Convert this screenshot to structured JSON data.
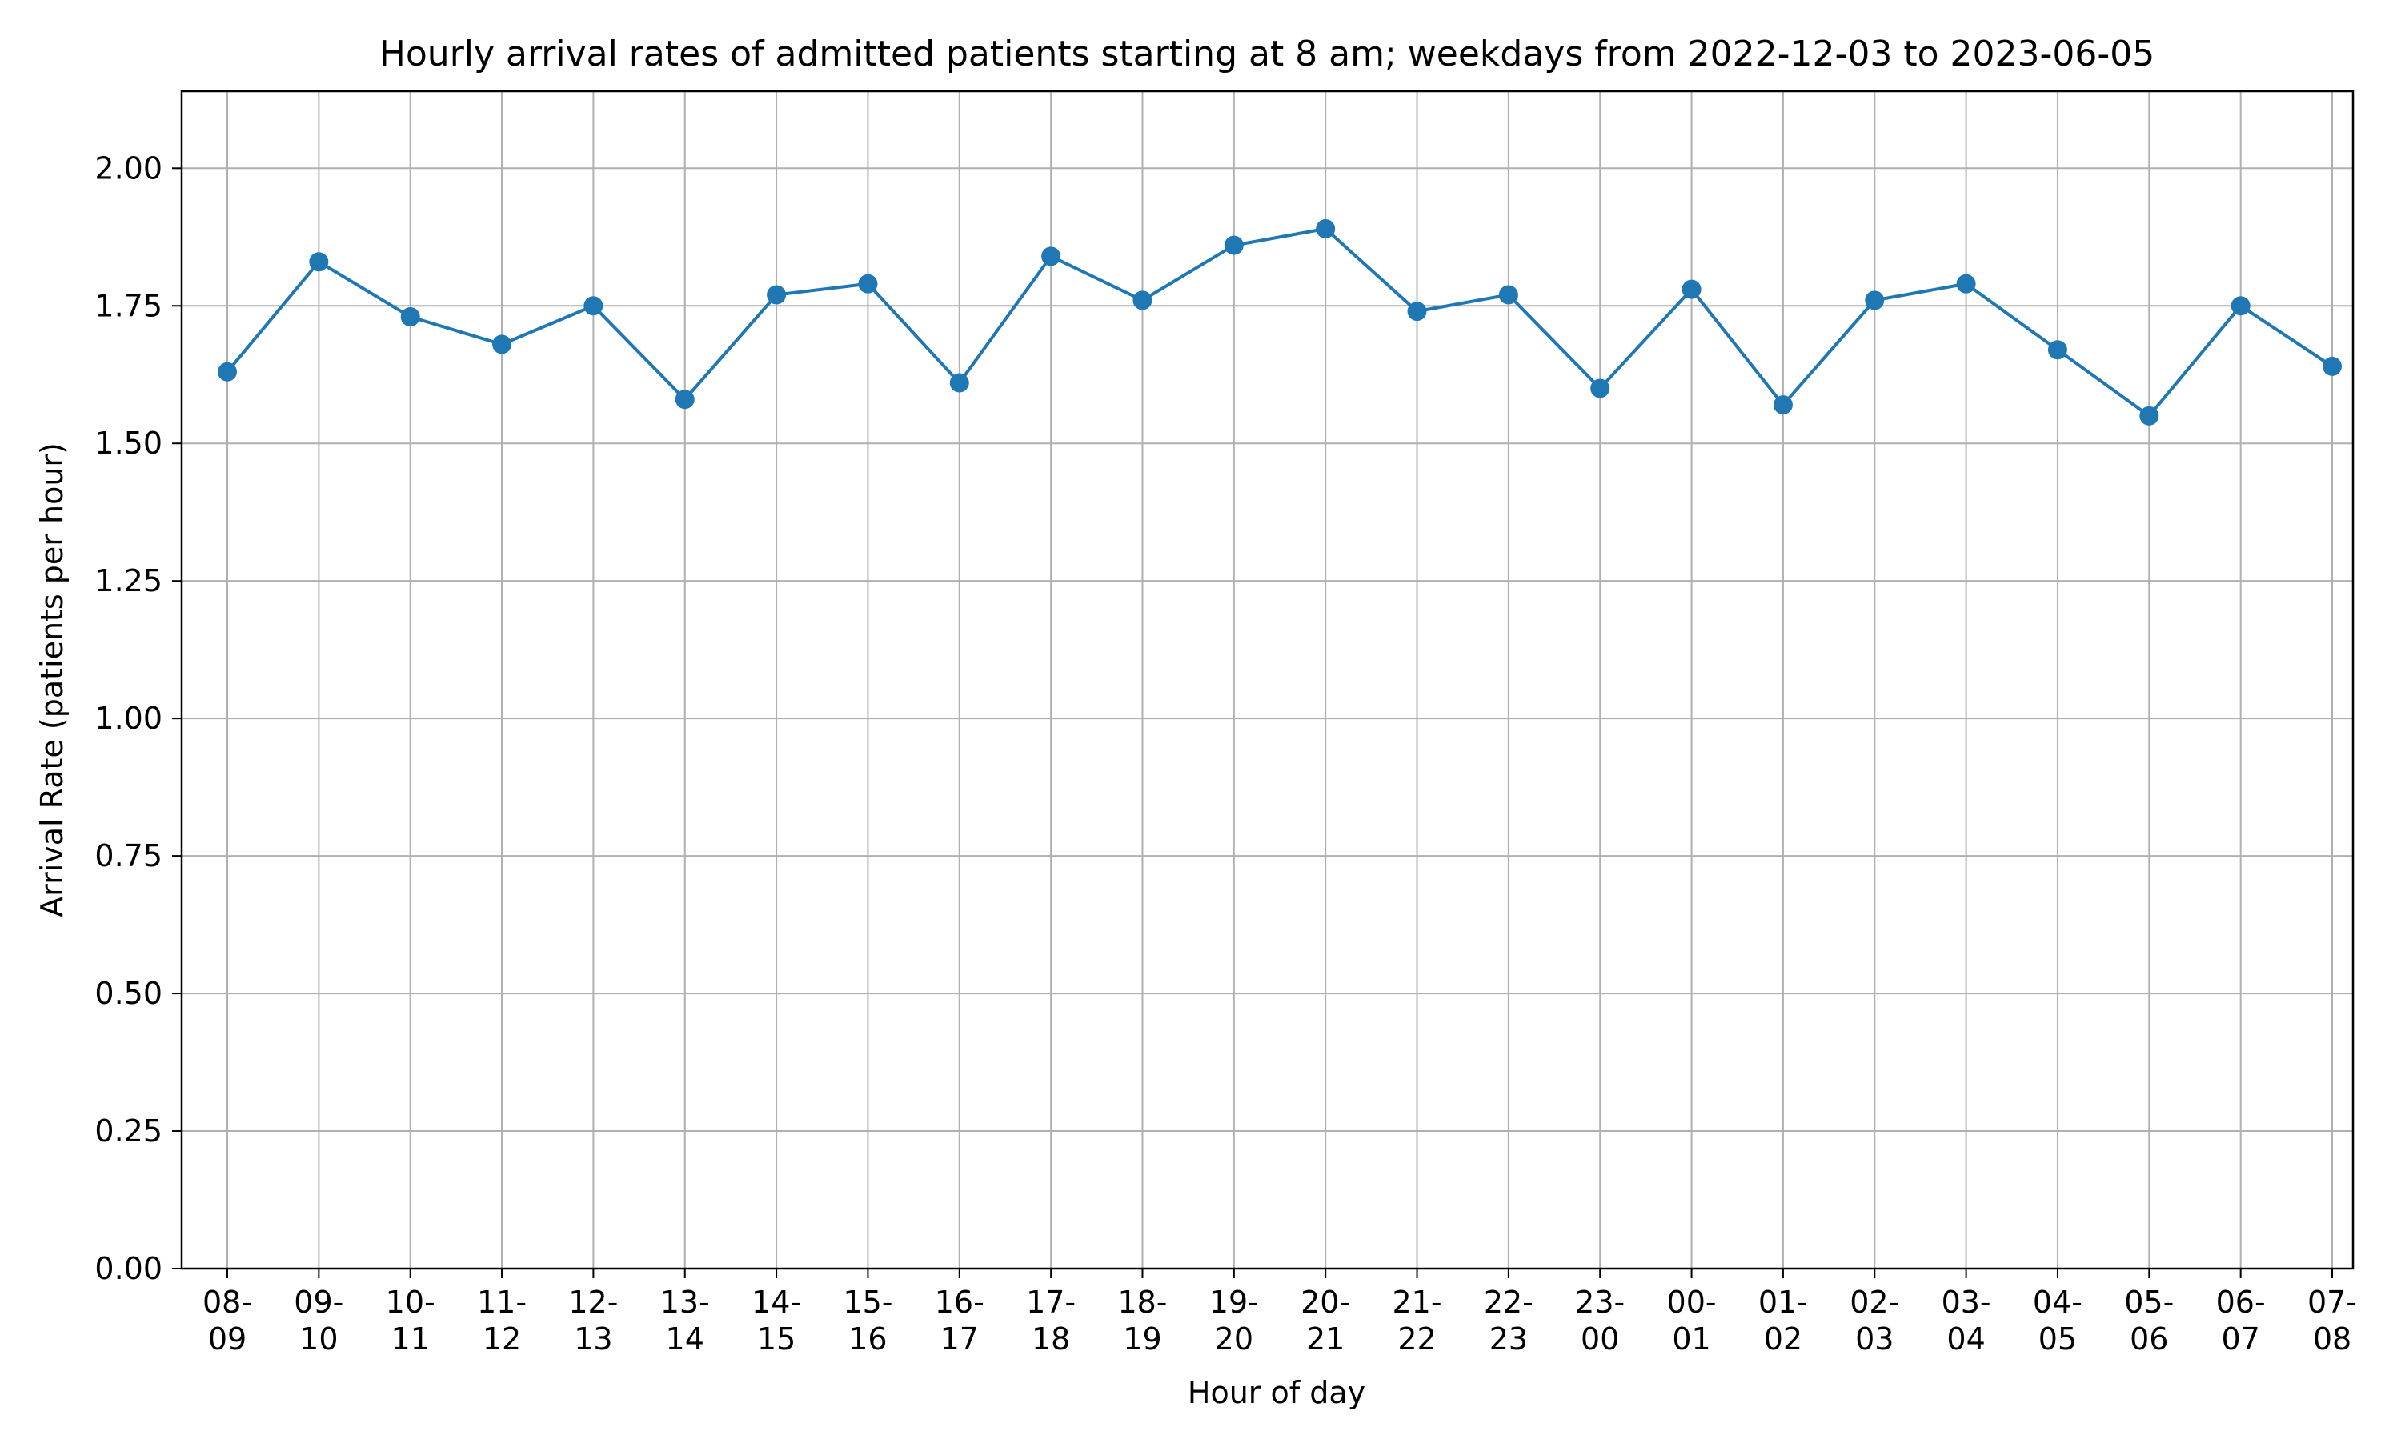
{
  "chart_data": {
    "type": "line",
    "title": "Hourly arrival rates of admitted patients starting at 8 am; weekdays from 2022-12-03 to 2023-06-05",
    "xlabel": "Hour of day",
    "ylabel": "Arrival Rate (patients per hour)",
    "categories": [
      [
        "08-",
        "09"
      ],
      [
        "09-",
        "10"
      ],
      [
        "10-",
        "11"
      ],
      [
        "11-",
        "12"
      ],
      [
        "12-",
        "13"
      ],
      [
        "13-",
        "14"
      ],
      [
        "14-",
        "15"
      ],
      [
        "15-",
        "16"
      ],
      [
        "16-",
        "17"
      ],
      [
        "17-",
        "18"
      ],
      [
        "18-",
        "19"
      ],
      [
        "19-",
        "20"
      ],
      [
        "20-",
        "21"
      ],
      [
        "21-",
        "22"
      ],
      [
        "22-",
        "23"
      ],
      [
        "23-",
        "00"
      ],
      [
        "00-",
        "01"
      ],
      [
        "01-",
        "02"
      ],
      [
        "02-",
        "03"
      ],
      [
        "03-",
        "04"
      ],
      [
        "04-",
        "05"
      ],
      [
        "05-",
        "06"
      ],
      [
        "06-",
        "07"
      ],
      [
        "07-",
        "08"
      ]
    ],
    "series": [
      {
        "values": [
          1.63,
          1.83,
          1.73,
          1.68,
          1.75,
          1.58,
          1.77,
          1.79,
          1.61,
          1.84,
          1.76,
          1.86,
          1.89,
          1.74,
          1.77,
          1.6,
          1.78,
          1.57,
          1.76,
          1.79,
          1.67,
          1.55,
          1.75,
          1.64
        ]
      }
    ],
    "ylim": [
      0,
      2.14
    ],
    "yticks": [
      0.0,
      0.25,
      0.5,
      0.75,
      1.0,
      1.25,
      1.5,
      1.75,
      2.0
    ],
    "ytick_labels": [
      "0.00",
      "0.25",
      "0.50",
      "0.75",
      "1.00",
      "1.25",
      "1.50",
      "1.75",
      "2.00"
    ],
    "grid": true,
    "line_color": "#1f77b4",
    "grid_color": "#b0b0b0"
  }
}
